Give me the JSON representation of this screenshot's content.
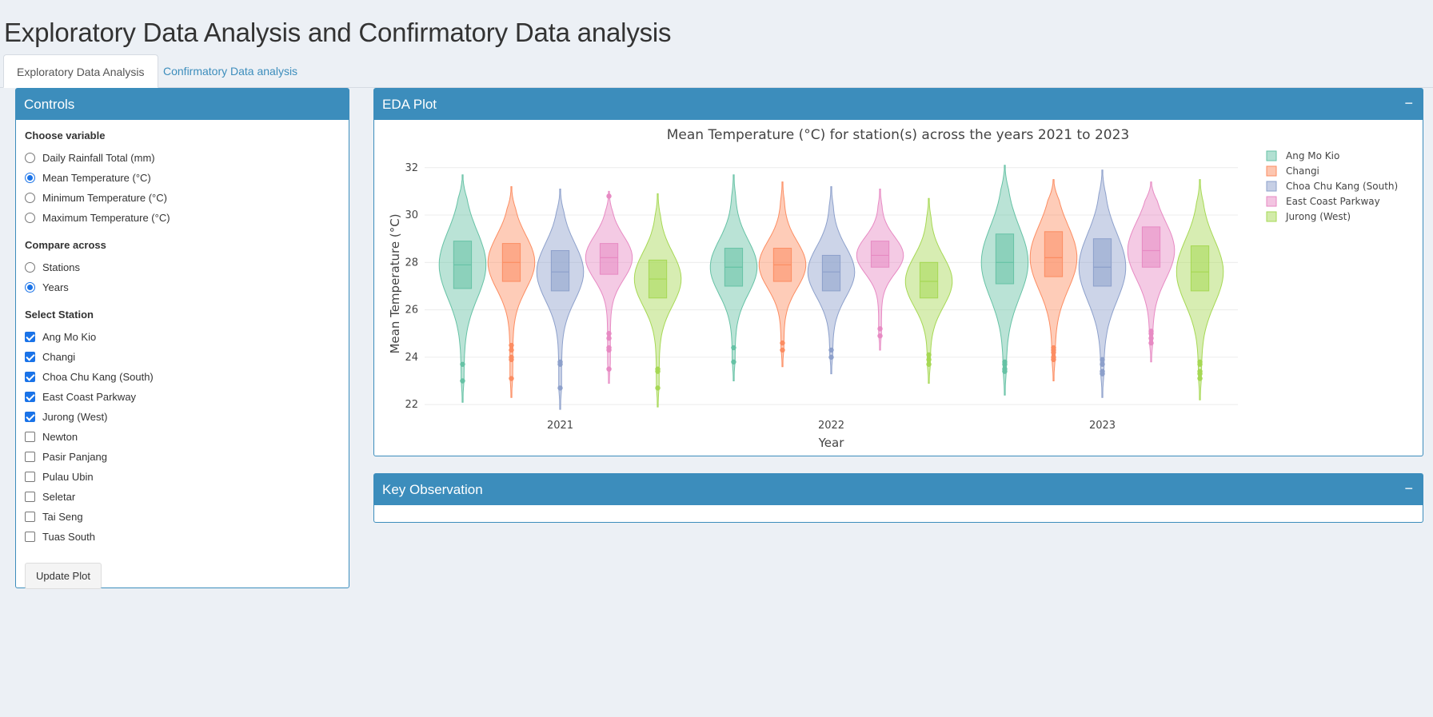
{
  "page": {
    "title": "Exploratory Data Analysis and Confirmatory Data analysis"
  },
  "tabs": [
    {
      "label": "Exploratory Data Analysis",
      "active": true
    },
    {
      "label": "Confirmatory Data analysis",
      "active": false
    }
  ],
  "controls": {
    "title": "Controls",
    "variable": {
      "label": "Choose variable",
      "selected": "Mean Temperature (°C)",
      "options": [
        "Daily Rainfall Total (mm)",
        "Mean Temperature (°C)",
        "Minimum Temperature (°C)",
        "Maximum Temperature (°C)"
      ]
    },
    "compare": {
      "label": "Compare across",
      "selected": "Years",
      "options": [
        "Stations",
        "Years"
      ]
    },
    "stations": {
      "label": "Select Station",
      "options": [
        {
          "name": "Ang Mo Kio",
          "checked": true
        },
        {
          "name": "Changi",
          "checked": true
        },
        {
          "name": "Choa Chu Kang (South)",
          "checked": true
        },
        {
          "name": "East Coast Parkway",
          "checked": true
        },
        {
          "name": "Jurong (West)",
          "checked": true
        },
        {
          "name": "Newton",
          "checked": false
        },
        {
          "name": "Pasir Panjang",
          "checked": false
        },
        {
          "name": "Pulau Ubin",
          "checked": false
        },
        {
          "name": "Seletar",
          "checked": false
        },
        {
          "name": "Tai Seng",
          "checked": false
        },
        {
          "name": "Tuas South",
          "checked": false
        }
      ]
    },
    "update_button": "Update Plot"
  },
  "eda_box": {
    "title": "EDA Plot",
    "collapse": "−"
  },
  "key_box": {
    "title": "Key Observation",
    "collapse": "−"
  },
  "chart_data": {
    "type": "violin",
    "title": "Mean Temperature (°C) for station(s) across the years 2021 to 2023",
    "xlabel": "Year",
    "ylabel": "Mean Temperature (°C)",
    "ylim": [
      21.6,
      32.6
    ],
    "yticks": [
      22,
      24,
      26,
      28,
      30,
      32
    ],
    "categories": [
      "2021",
      "2022",
      "2023"
    ],
    "grid": true,
    "legend_position": "top-right",
    "series": [
      {
        "name": "Ang Mo Kio",
        "color": "#66c2a5",
        "stats": [
          {
            "min": 22.1,
            "max": 31.7,
            "q1": 26.9,
            "median": 27.9,
            "q3": 28.9,
            "outliers": [
              23.0,
              23.7
            ]
          },
          {
            "min": 23.0,
            "max": 31.7,
            "q1": 27.0,
            "median": 27.8,
            "q3": 28.6,
            "outliers": [
              23.8,
              24.4
            ]
          },
          {
            "min": 22.4,
            "max": 32.1,
            "q1": 27.1,
            "median": 28.0,
            "q3": 29.2,
            "outliers": [
              23.4,
              23.5,
              23.7,
              23.8
            ]
          }
        ]
      },
      {
        "name": "Changi",
        "color": "#fc8d62",
        "stats": [
          {
            "min": 22.3,
            "max": 31.2,
            "q1": 27.2,
            "median": 28.0,
            "q3": 28.8,
            "outliers": [
              23.1,
              23.9,
              24.0,
              24.3,
              24.5
            ]
          },
          {
            "min": 23.6,
            "max": 31.4,
            "q1": 27.2,
            "median": 27.9,
            "q3": 28.6,
            "outliers": [
              24.3,
              24.6
            ]
          },
          {
            "min": 23.0,
            "max": 31.5,
            "q1": 27.4,
            "median": 28.2,
            "q3": 29.3,
            "outliers": [
              23.9,
              24.0,
              24.2,
              24.3,
              24.4
            ]
          }
        ]
      },
      {
        "name": "Choa Chu Kang (South)",
        "color": "#8da0cb",
        "stats": [
          {
            "min": 21.8,
            "max": 31.1,
            "q1": 26.8,
            "median": 27.6,
            "q3": 28.5,
            "outliers": [
              22.7,
              23.7,
              23.8
            ]
          },
          {
            "min": 23.3,
            "max": 31.2,
            "q1": 26.8,
            "median": 27.6,
            "q3": 28.3,
            "outliers": [
              24.0,
              24.3
            ]
          },
          {
            "min": 22.3,
            "max": 31.9,
            "q1": 27.0,
            "median": 27.8,
            "q3": 29.0,
            "outliers": [
              23.3,
              23.4,
              23.7,
              23.9
            ]
          }
        ]
      },
      {
        "name": "East Coast Parkway",
        "color": "#e78ac3",
        "stats": [
          {
            "min": 22.9,
            "max": 31.0,
            "q1": 27.5,
            "median": 28.2,
            "q3": 28.8,
            "outliers": [
              23.5,
              24.3,
              24.4,
              24.8,
              25.0,
              30.8
            ]
          },
          {
            "min": 24.3,
            "max": 31.1,
            "q1": 27.8,
            "median": 28.3,
            "q3": 28.9,
            "outliers": [
              24.9,
              25.2
            ]
          },
          {
            "min": 23.8,
            "max": 31.4,
            "q1": 27.8,
            "median": 28.5,
            "q3": 29.5,
            "outliers": [
              24.6,
              24.8,
              25.0,
              25.1
            ]
          }
        ]
      },
      {
        "name": "Jurong (West)",
        "color": "#a6d854",
        "stats": [
          {
            "min": 21.9,
            "max": 30.9,
            "q1": 26.5,
            "median": 27.3,
            "q3": 28.1,
            "outliers": [
              22.7,
              23.4,
              23.5
            ]
          },
          {
            "min": 22.9,
            "max": 30.7,
            "q1": 26.5,
            "median": 27.2,
            "q3": 28.0,
            "outliers": [
              23.7,
              23.9,
              24.1
            ]
          },
          {
            "min": 22.2,
            "max": 31.5,
            "q1": 26.8,
            "median": 27.6,
            "q3": 28.7,
            "outliers": [
              23.1,
              23.3,
              23.4,
              23.7,
              23.8
            ]
          }
        ]
      }
    ]
  }
}
